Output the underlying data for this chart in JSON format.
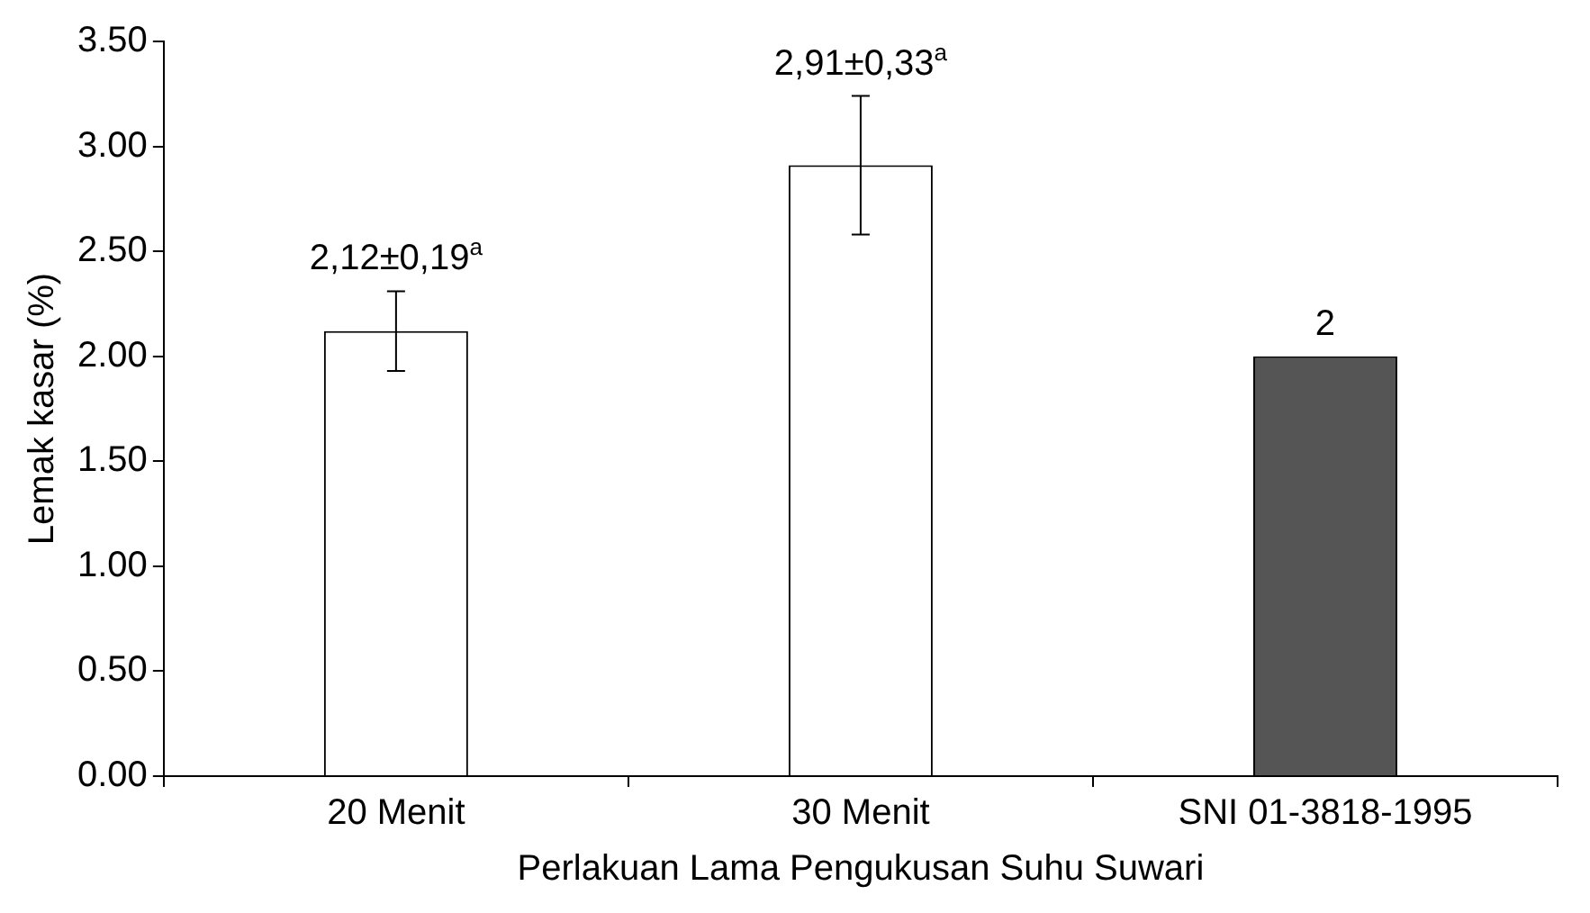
{
  "chart_data": {
    "type": "bar",
    "xlabel": "Perlakuan Lama Pengukusan Suhu Suwari",
    "ylabel": "Lemak kasar (%)",
    "categories": [
      "20 Menit",
      "30 Menit",
      "SNI 01-3818-1995"
    ],
    "values": [
      2.12,
      2.91,
      2.0
    ],
    "colors": [
      "#ffffff",
      "#ffffff",
      "#555555"
    ],
    "errors": [
      0.19,
      0.33,
      null
    ],
    "value_labels": [
      "2,12±0,19$^{a}$",
      "2,91±0,33$^{a}$",
      "2"
    ],
    "ylim": [
      0,
      3.5
    ],
    "yticks": [
      {
        "value": 0,
        "label": "0.00"
      },
      {
        "value": 0.5,
        "label": "0.50"
      },
      {
        "value": 1,
        "label": "1.00"
      },
      {
        "value": 1.5,
        "label": "1.50"
      },
      {
        "value": 2,
        "label": "2.00"
      },
      {
        "value": 2.5,
        "label": "2.50"
      },
      {
        "value": 3,
        "label": "3.00"
      },
      {
        "value": 3.5,
        "label": "3.50"
      }
    ]
  }
}
